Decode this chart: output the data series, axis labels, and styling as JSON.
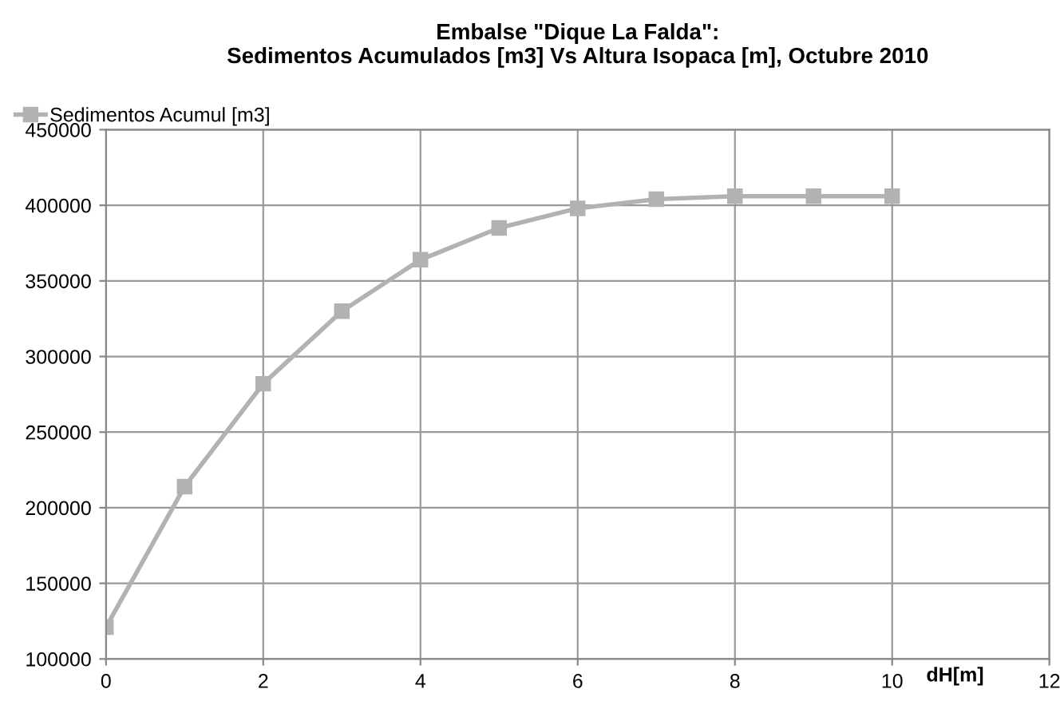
{
  "chart_data": {
    "type": "line",
    "title": "Embalse \"Dique La Falda\":\nSedimentos Acumulados [m3] Vs Altura Isopaca [m], Octubre 2010",
    "xlabel": "dH[m]",
    "x": [
      0,
      1,
      2,
      3,
      4,
      5,
      6,
      7,
      8,
      9,
      10
    ],
    "series": [
      {
        "name": "Sedimentos Acumul [m3]",
        "color": "#b2b2b2",
        "values": [
          121000,
          214000,
          282000,
          330000,
          364000,
          385000,
          398000,
          404000,
          406000,
          406000,
          406000
        ]
      }
    ],
    "xlim": [
      0,
      12
    ],
    "xticks": [
      0,
      2,
      4,
      6,
      8,
      10,
      12
    ],
    "ylim": [
      100000,
      450000
    ],
    "yticks": [
      100000,
      150000,
      200000,
      250000,
      300000,
      350000,
      400000,
      450000
    ],
    "grid": true,
    "legend": "top left",
    "marker": "square",
    "line_style": "solid"
  }
}
